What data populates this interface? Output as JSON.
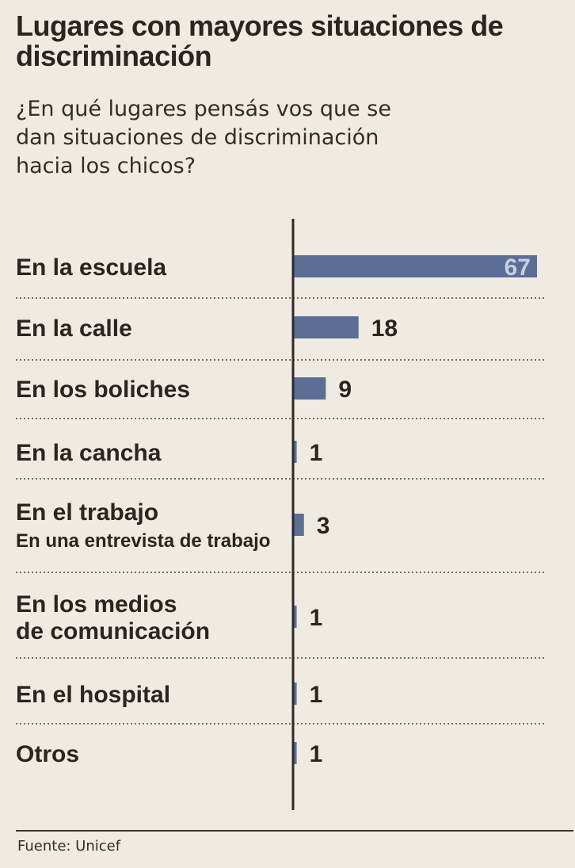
{
  "title": "Lugares con mayores situaciones de discriminación",
  "subtitle": "¿En qué lugares pensás vos que se dan situaciones de discriminación hacia los chicos?",
  "source": "Fuente: Unicef",
  "colors": {
    "bar": "#5c6e96",
    "text": "#2a2422",
    "background": "#efebe3",
    "inner_value": "#c7cee0"
  },
  "chart_data": {
    "type": "bar",
    "orientation": "horizontal",
    "title": "Lugares con mayores situaciones de discriminación",
    "subtitle": "¿En qué lugares pensás vos que se dan situaciones de discriminación hacia los chicos?",
    "categories": [
      [
        "En la escuela"
      ],
      [
        "En la calle"
      ],
      [
        "En los boliches"
      ],
      [
        "En la cancha"
      ],
      [
        "En el trabajo",
        "En una entrevista de trabajo"
      ],
      [
        "En los medios",
        "de comunicación"
      ],
      [
        "En el hospital"
      ],
      [
        "Otros"
      ]
    ],
    "values": [
      67,
      18,
      9,
      1,
      3,
      1,
      1,
      1
    ],
    "xlim": [
      0,
      67
    ],
    "grid": false,
    "source": "Fuente: Unicef"
  }
}
